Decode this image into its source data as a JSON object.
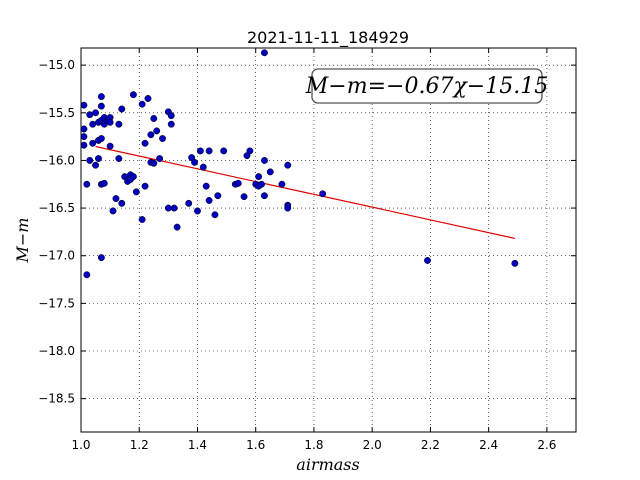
{
  "chart_data": {
    "type": "scatter",
    "title": "2021-11-11_184929",
    "xlabel": "airmass",
    "ylabel": "M−m",
    "xlim": [
      1.0,
      2.7
    ],
    "ylim": [
      -18.85,
      -14.82
    ],
    "xticks": [
      1.0,
      1.2,
      1.4,
      1.6,
      1.8,
      2.0,
      2.2,
      2.4,
      2.6
    ],
    "xtick_labels": [
      "1.0",
      "1.2",
      "1.4",
      "1.6",
      "1.8",
      "2.0",
      "2.2",
      "2.4",
      "2.6"
    ],
    "yticks": [
      -15.0,
      -15.5,
      -16.0,
      -16.5,
      -17.0,
      -17.5,
      -18.0,
      -18.5
    ],
    "ytick_labels": [
      "−15.0",
      "−15.5",
      "−16.0",
      "−16.5",
      "−17.0",
      "−17.5",
      "−18.0",
      "−18.5"
    ],
    "grid": true,
    "marker_color": "#0000bf",
    "fit_color": "#e00000",
    "annotation": "M−m=−0.67χ−15.15",
    "fit": {
      "slope": -0.67,
      "intercept": -15.15,
      "x_range": [
        1.05,
        2.49
      ]
    },
    "points": [
      [
        1.01,
        -15.42
      ],
      [
        1.01,
        -15.67
      ],
      [
        1.01,
        -15.75
      ],
      [
        1.01,
        -15.84
      ],
      [
        1.02,
        -16.25
      ],
      [
        1.02,
        -17.2
      ],
      [
        1.03,
        -15.52
      ],
      [
        1.03,
        -16.0
      ],
      [
        1.04,
        -15.62
      ],
      [
        1.04,
        -15.82
      ],
      [
        1.05,
        -15.5
      ],
      [
        1.05,
        -16.05
      ],
      [
        1.06,
        -15.6
      ],
      [
        1.06,
        -15.79
      ],
      [
        1.06,
        -15.98
      ],
      [
        1.07,
        -15.33
      ],
      [
        1.07,
        -15.43
      ],
      [
        1.07,
        -15.58
      ],
      [
        1.07,
        -15.77
      ],
      [
        1.07,
        -16.25
      ],
      [
        1.07,
        -17.02
      ],
      [
        1.08,
        -15.55
      ],
      [
        1.08,
        -15.62
      ],
      [
        1.08,
        -16.24
      ],
      [
        1.09,
        -15.58
      ],
      [
        1.1,
        -15.55
      ],
      [
        1.1,
        -15.6
      ],
      [
        1.1,
        -15.85
      ],
      [
        1.11,
        -16.53
      ],
      [
        1.12,
        -16.4
      ],
      [
        1.13,
        -15.62
      ],
      [
        1.13,
        -15.98
      ],
      [
        1.14,
        -15.46
      ],
      [
        1.14,
        -16.45
      ],
      [
        1.15,
        -16.17
      ],
      [
        1.16,
        -16.22
      ],
      [
        1.17,
        -16.15
      ],
      [
        1.17,
        -16.2
      ],
      [
        1.18,
        -16.17
      ],
      [
        1.18,
        -15.31
      ],
      [
        1.19,
        -16.33
      ],
      [
        1.21,
        -15.41
      ],
      [
        1.21,
        -16.62
      ],
      [
        1.22,
        -16.27
      ],
      [
        1.22,
        -15.82
      ],
      [
        1.23,
        -15.35
      ],
      [
        1.24,
        -15.73
      ],
      [
        1.24,
        -16.02
      ],
      [
        1.25,
        -15.56
      ],
      [
        1.25,
        -16.03
      ],
      [
        1.26,
        -15.69
      ],
      [
        1.27,
        -15.98
      ],
      [
        1.28,
        -15.77
      ],
      [
        1.3,
        -15.49
      ],
      [
        1.3,
        -16.5
      ],
      [
        1.31,
        -15.53
      ],
      [
        1.31,
        -15.62
      ],
      [
        1.32,
        -16.5
      ],
      [
        1.33,
        -16.7
      ],
      [
        1.37,
        -16.45
      ],
      [
        1.38,
        -15.97
      ],
      [
        1.39,
        -16.02
      ],
      [
        1.4,
        -16.53
      ],
      [
        1.41,
        -15.9
      ],
      [
        1.42,
        -16.07
      ],
      [
        1.43,
        -16.27
      ],
      [
        1.44,
        -16.42
      ],
      [
        1.44,
        -15.9
      ],
      [
        1.46,
        -16.57
      ],
      [
        1.47,
        -16.37
      ],
      [
        1.49,
        -15.9
      ],
      [
        1.53,
        -16.25
      ],
      [
        1.54,
        -16.24
      ],
      [
        1.56,
        -16.38
      ],
      [
        1.57,
        -15.95
      ],
      [
        1.58,
        -15.9
      ],
      [
        1.6,
        -16.25
      ],
      [
        1.61,
        -16.27
      ],
      [
        1.61,
        -16.17
      ],
      [
        1.62,
        -16.25
      ],
      [
        1.63,
        -16.37
      ],
      [
        1.63,
        -14.87
      ],
      [
        1.63,
        -16.0
      ],
      [
        1.65,
        -16.12
      ],
      [
        1.69,
        -16.25
      ],
      [
        1.71,
        -16.05
      ],
      [
        1.71,
        -16.47
      ],
      [
        1.71,
        -16.5
      ],
      [
        1.83,
        -16.35
      ],
      [
        2.19,
        -17.05
      ],
      [
        2.49,
        -17.08
      ]
    ]
  }
}
